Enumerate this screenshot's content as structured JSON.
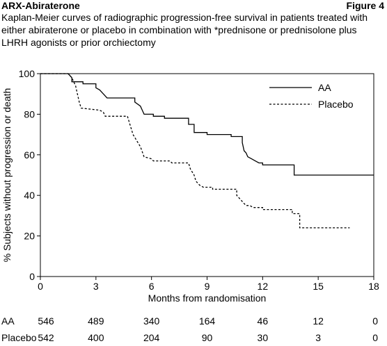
{
  "header": {
    "title": "ARX-Abiraterone",
    "figure_label": "Figure 4",
    "subtitle": "Kaplan-Meier curves of radiographic progression-free survival in patients treated with either abiraterone or placebo in combination with *prednisone or prednisolone plus LHRH agonists or prior orchiectomy"
  },
  "chart_data": {
    "type": "line",
    "title": "Kaplan-Meier curves of radiographic progression-free survival in patients treated with either abiraterone or placebo in combination with *prednisone or prednisolone plus LHRH agonists or prior orchiectomy",
    "xlabel": "Months from randomisation",
    "ylabel": "% Subjects without progression or death",
    "xlim": [
      0,
      18
    ],
    "ylim": [
      0,
      100
    ],
    "xticks": [
      "0",
      "3",
      "6",
      "9",
      "12",
      "15",
      "18"
    ],
    "yticks": [
      "0",
      "20",
      "40",
      "60",
      "80",
      "100"
    ],
    "grid": false,
    "legend_position": "top-right",
    "series": [
      {
        "name": "AA",
        "style": "solid",
        "color": "#000000",
        "x": [
          0,
          1.5,
          1.7,
          1.7,
          2.3,
          2.3,
          3.0,
          3.0,
          3.2,
          3.4,
          3.6,
          5.1,
          5.1,
          5.4,
          5.5,
          5.6,
          6.1,
          6.1,
          6.7,
          6.7,
          8.0,
          8.0,
          8.3,
          8.3,
          9.0,
          9.0,
          10.3,
          10.3,
          10.9,
          10.9,
          11.0,
          11.1,
          11.2,
          11.4,
          11.6,
          11.8,
          12.0,
          12.0,
          13.7,
          13.7,
          18.0
        ],
        "y": [
          100,
          100,
          98,
          96,
          96,
          95,
          95,
          93,
          92,
          90,
          88,
          88,
          86,
          84,
          82,
          80,
          80,
          79,
          79,
          78,
          78,
          75,
          75,
          71,
          71,
          70,
          70,
          69,
          69,
          66,
          62,
          61,
          59,
          58,
          57,
          56,
          56,
          55,
          55,
          50,
          50
        ]
      },
      {
        "name": "Placebo",
        "style": "dashed",
        "color": "#000000",
        "x": [
          0,
          1.5,
          1.7,
          1.9,
          2.0,
          2.1,
          2.2,
          3.2,
          3.4,
          3.5,
          4.7,
          4.9,
          5.0,
          5.2,
          5.4,
          5.6,
          6.0,
          6.1,
          7.0,
          7.1,
          8.0,
          8.1,
          8.3,
          8.4,
          8.6,
          8.8,
          9.3,
          9.3,
          10.6,
          10.6,
          11.0,
          11.1,
          11.3,
          11.5,
          12.0,
          12.0,
          13.6,
          13.6,
          14.0,
          14.0,
          16.7
        ],
        "y": [
          100,
          100,
          98,
          94,
          90,
          86,
          83,
          82,
          81,
          79,
          79,
          73,
          70,
          67,
          64,
          59,
          58,
          57,
          57,
          56,
          56,
          53,
          50,
          47,
          45,
          44,
          44,
          43,
          43,
          40,
          36,
          35,
          35,
          34,
          34,
          33,
          33,
          31,
          31,
          24,
          24
        ]
      }
    ],
    "at_risk": {
      "times": [
        0,
        3,
        6,
        9,
        12,
        15,
        18
      ],
      "rows": [
        {
          "label": "AA",
          "values": [
            "546",
            "489",
            "340",
            "164",
            "46",
            "12",
            "0"
          ]
        },
        {
          "label": "Placebo",
          "values": [
            "542",
            "400",
            "204",
            "90",
            "30",
            "3",
            "0"
          ]
        }
      ]
    }
  }
}
